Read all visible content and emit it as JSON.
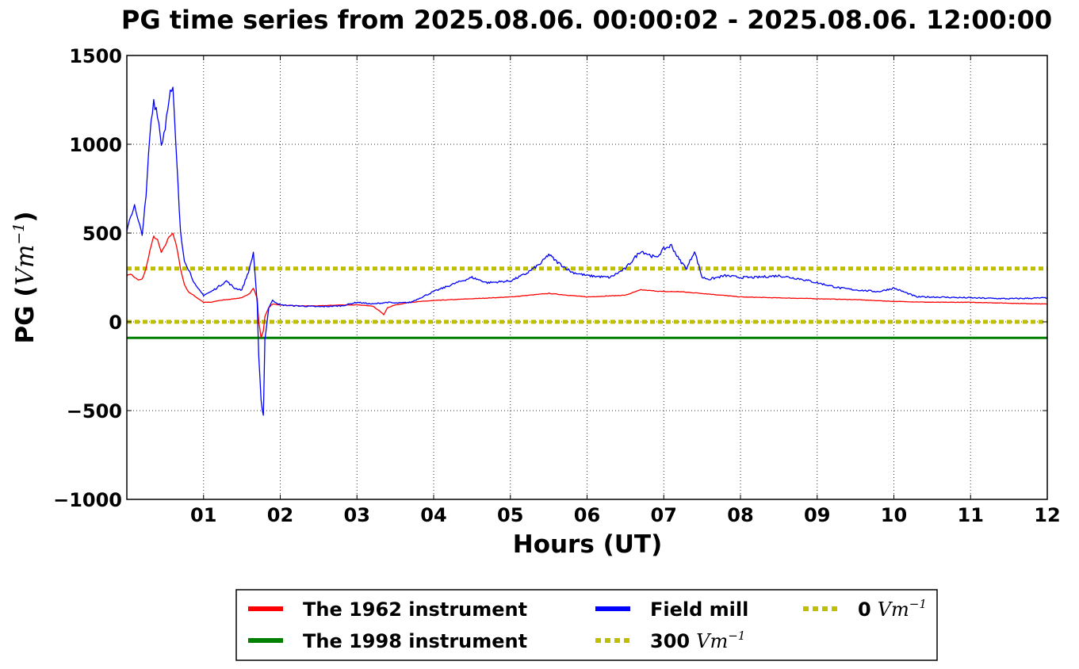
{
  "chart_data": {
    "type": "line",
    "title": "PG time series from 2025.08.06. 00:00:02 - 2025.08.06. 12:00:00",
    "xlabel": "Hours (UT)",
    "ylabel_text": "PG (",
    "ylabel_unit": "Vm",
    "ylabel_exp": "−1",
    "ylabel_close": ")",
    "xlim": [
      0,
      12
    ],
    "ylim": [
      -1000,
      1500
    ],
    "grid": true,
    "legend_position": "bottom-center, below plot",
    "xticks": [
      {
        "value": 1,
        "label": "01"
      },
      {
        "value": 2,
        "label": "02"
      },
      {
        "value": 3,
        "label": "03"
      },
      {
        "value": 4,
        "label": "04"
      },
      {
        "value": 5,
        "label": "05"
      },
      {
        "value": 6,
        "label": "06"
      },
      {
        "value": 7,
        "label": "07"
      },
      {
        "value": 8,
        "label": "08"
      },
      {
        "value": 9,
        "label": "09"
      },
      {
        "value": 10,
        "label": "10"
      },
      {
        "value": 11,
        "label": "11"
      },
      {
        "value": 12,
        "label": "12"
      }
    ],
    "yticks": [
      {
        "value": 1500,
        "label": "1500"
      },
      {
        "value": 1000,
        "label": "1000"
      },
      {
        "value": 500,
        "label": "500"
      },
      {
        "value": 0,
        "label": "0"
      },
      {
        "value": -500,
        "label": "−500"
      },
      {
        "value": -1000,
        "label": "−1000"
      }
    ],
    "series": [
      {
        "name": "The 1962 instrument",
        "color": "#ff0000",
        "x": [
          0.0,
          0.05,
          0.1,
          0.15,
          0.2,
          0.25,
          0.3,
          0.35,
          0.4,
          0.45,
          0.5,
          0.55,
          0.6,
          0.65,
          0.7,
          0.75,
          0.8,
          0.9,
          1.0,
          1.1,
          1.2,
          1.3,
          1.4,
          1.5,
          1.6,
          1.65,
          1.7,
          1.72,
          1.75,
          1.78,
          1.8,
          1.85,
          1.9,
          2.0,
          2.2,
          2.5,
          2.8,
          3.0,
          3.2,
          3.3,
          3.35,
          3.4,
          3.5,
          3.7,
          4.0,
          4.5,
          5.0,
          5.5,
          6.0,
          6.5,
          6.7,
          7.0,
          7.2,
          7.5,
          8.0,
          8.5,
          9.0,
          9.5,
          10.0,
          10.5,
          11.0,
          11.5,
          12.0
        ],
        "y": [
          260,
          270,
          250,
          235,
          240,
          300,
          400,
          480,
          460,
          390,
          430,
          480,
          500,
          420,
          300,
          210,
          170,
          140,
          110,
          110,
          120,
          125,
          130,
          135,
          160,
          190,
          130,
          0,
          -90,
          -50,
          30,
          80,
          100,
          95,
          90,
          90,
          95,
          95,
          90,
          60,
          40,
          80,
          95,
          110,
          120,
          130,
          140,
          160,
          140,
          150,
          180,
          170,
          170,
          160,
          140,
          135,
          130,
          125,
          115,
          110,
          110,
          105,
          100
        ]
      },
      {
        "name": "The 1998 instrument",
        "color": "#008000",
        "x": [
          0,
          12
        ],
        "y": [
          -90,
          -90
        ]
      },
      {
        "name": "Field mill",
        "color": "#0000ff",
        "x": [
          0.0,
          0.05,
          0.1,
          0.15,
          0.2,
          0.25,
          0.3,
          0.35,
          0.4,
          0.45,
          0.5,
          0.55,
          0.6,
          0.65,
          0.7,
          0.75,
          0.8,
          0.9,
          1.0,
          1.1,
          1.2,
          1.3,
          1.4,
          1.5,
          1.6,
          1.65,
          1.7,
          1.72,
          1.75,
          1.78,
          1.8,
          1.85,
          1.9,
          2.0,
          2.2,
          2.5,
          2.8,
          3.0,
          3.2,
          3.4,
          3.5,
          3.7,
          4.0,
          4.3,
          4.5,
          4.7,
          5.0,
          5.2,
          5.4,
          5.5,
          5.6,
          5.8,
          6.0,
          6.3,
          6.5,
          6.7,
          6.8,
          6.9,
          7.0,
          7.1,
          7.2,
          7.3,
          7.4,
          7.5,
          7.6,
          7.8,
          8.0,
          8.2,
          8.5,
          8.8,
          9.0,
          9.3,
          9.5,
          9.8,
          10.0,
          10.3,
          10.5,
          11.0,
          11.5,
          12.0
        ],
        "y": [
          520,
          600,
          650,
          560,
          500,
          700,
          1050,
          1250,
          1180,
          1000,
          1100,
          1280,
          1300,
          900,
          500,
          350,
          300,
          200,
          150,
          170,
          200,
          230,
          190,
          180,
          300,
          390,
          100,
          -200,
          -450,
          -520,
          -100,
          80,
          120,
          95,
          90,
          85,
          90,
          110,
          100,
          110,
          105,
          110,
          170,
          220,
          250,
          220,
          230,
          270,
          330,
          380,
          340,
          280,
          260,
          250,
          300,
          400,
          380,
          360,
          410,
          430,
          350,
          300,
          400,
          250,
          240,
          260,
          250,
          250,
          260,
          240,
          220,
          190,
          180,
          170,
          190,
          140,
          140,
          135,
          130,
          135
        ]
      },
      {
        "name": "300",
        "name_unit": "Vm",
        "name_exp": "−1",
        "color": "#bfbf00",
        "dashed": true,
        "x": [
          0,
          12
        ],
        "y": [
          300,
          300
        ]
      },
      {
        "name": "0",
        "name_unit": "Vm",
        "name_exp": "−1",
        "color": "#bfbf00",
        "dashed": true,
        "x": [
          0,
          12
        ],
        "y": [
          0,
          0
        ]
      }
    ]
  }
}
